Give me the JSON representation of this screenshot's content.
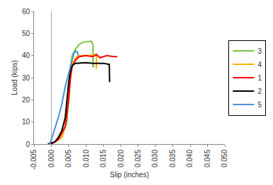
{
  "chart_data": {
    "type": "line",
    "x_label": "Slip (inches)",
    "y_label": "Load (kips)",
    "xlim": [
      -0.005,
      0.05
    ],
    "ylim": [
      0,
      60
    ],
    "xticks": [
      -0.005,
      {
        "value": 0,
        "label": "0.000"
      },
      0.005,
      {
        "value": 0.01,
        "label": "0.010"
      },
      0.015,
      {
        "value": 0.02,
        "label": "0.020"
      },
      0.025,
      {
        "value": 0.03,
        "label": "0.030"
      },
      0.035,
      {
        "value": 0.04,
        "label": "0.040"
      },
      0.045,
      {
        "value": 0.05,
        "label": "0.050"
      }
    ],
    "yticks": [
      0,
      10,
      20,
      30,
      40,
      50,
      60
    ],
    "grid": false,
    "legend": "right",
    "series": [
      {
        "name": "3",
        "color": "#7cc242",
        "x": [
          0,
          0.003,
          0.0045,
          0.005,
          0.0055,
          0.006,
          0.007,
          0.008,
          0.009,
          0.0115,
          0.012,
          0.012,
          0.0125
        ],
        "values": [
          0,
          3,
          10,
          22,
          35,
          40,
          43,
          45,
          46,
          46.5,
          45,
          35,
          35
        ]
      },
      {
        "name": "4",
        "color": "#ffb000",
        "x": [
          0,
          0.003,
          0.004,
          0.005,
          0.0055,
          0.006,
          0.007,
          0.008,
          0.011,
          0.0125,
          0.013,
          0.013
        ],
        "values": [
          0,
          3,
          8,
          20,
          30,
          36,
          39,
          40,
          40,
          40.5,
          40,
          34
        ]
      },
      {
        "name": "1",
        "color": "#ff0000",
        "x": [
          0,
          0.002,
          0.004,
          0.005,
          0.0055,
          0.006,
          0.007,
          0.008,
          0.01,
          0.012,
          0.013,
          0.014,
          0.015,
          0.016,
          0.018,
          0.019
        ],
        "values": [
          0,
          2,
          8,
          20,
          30,
          35,
          38,
          39.5,
          40,
          39.5,
          40.5,
          39,
          39.5,
          40,
          39.5,
          39.5
        ]
      },
      {
        "name": "2",
        "color": "#000000",
        "x": [
          -0.001,
          0.001,
          0.002,
          0.003,
          0.004,
          0.0045,
          0.005,
          0.0055,
          0.006,
          0.007,
          0.01,
          0.012,
          0.015,
          0.0167,
          0.0168
        ],
        "values": [
          0,
          1,
          3,
          6,
          12,
          20,
          28,
          33,
          35.5,
          36.5,
          36.8,
          36.5,
          36.5,
          36,
          28
        ]
      },
      {
        "name": "5",
        "color": "#4a90d9",
        "x": [
          -0.0005,
          0,
          0.001,
          0.002,
          0.003,
          0.004,
          0.005,
          0.006,
          0.0065,
          0.007,
          0.0075,
          0.0077
        ],
        "values": [
          0,
          2,
          7,
          12,
          18,
          26,
          32,
          38,
          41,
          42,
          41.5,
          40
        ]
      }
    ]
  }
}
